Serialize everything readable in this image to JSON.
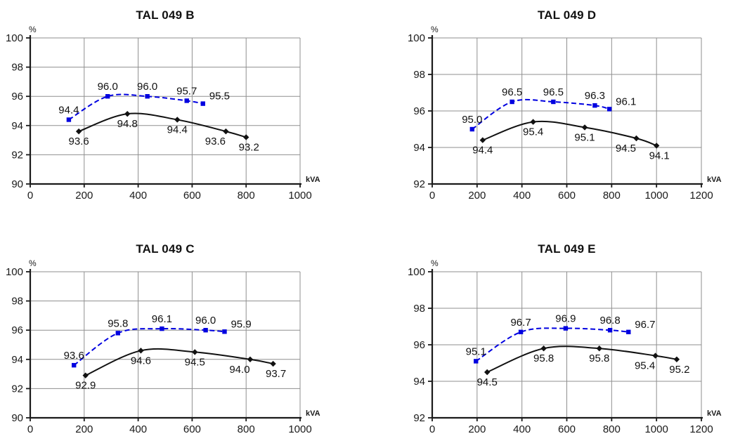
{
  "colors": {
    "series_blue": "#0000e0",
    "series_black": "#111111",
    "grid": "#8f8f8f",
    "axis": "#1a1a1a",
    "text": "#1a1a1a"
  },
  "chart_data": [
    {
      "type": "line",
      "title": "TAL 049 B",
      "xlabel": "kVA",
      "ylabel": "%",
      "xlim": [
        0,
        1000
      ],
      "ylim": [
        90,
        100
      ],
      "xticks": [
        0,
        200,
        400,
        600,
        800,
        1000
      ],
      "yticks": [
        90,
        92,
        94,
        96,
        98,
        100
      ],
      "grid": true,
      "legend": "none",
      "series": [
        {
          "name": "upper-curve-blue-dashed-squares",
          "marker": "square",
          "line": "dashed",
          "color": "#0000e0",
          "x": [
            143,
            287,
            434,
            580,
            640
          ],
          "y": [
            94.4,
            96.0,
            96.0,
            95.7,
            95.5
          ],
          "labels": [
            "94.4",
            "96.0",
            "96.0",
            "95.7",
            "95.5"
          ]
        },
        {
          "name": "lower-curve-black-solid-diamonds",
          "marker": "diamond",
          "line": "solid",
          "color": "#111111",
          "x": [
            180,
            360,
            545,
            725,
            800
          ],
          "y": [
            93.6,
            94.8,
            94.4,
            93.6,
            93.2
          ],
          "labels": [
            "93.6",
            "94.8",
            "94.4",
            "93.6",
            "93.2"
          ]
        }
      ]
    },
    {
      "type": "line",
      "title": "TAL 049 D",
      "xlabel": "kVA",
      "ylabel": "%",
      "xlim": [
        0,
        1200
      ],
      "ylim": [
        92,
        100
      ],
      "xticks": [
        0,
        200,
        400,
        600,
        800,
        1000,
        1200
      ],
      "yticks": [
        92,
        94,
        96,
        98,
        100
      ],
      "grid": true,
      "legend": "none",
      "series": [
        {
          "name": "upper-curve-blue-dashed-squares",
          "marker": "square",
          "line": "dashed",
          "color": "#0000e0",
          "x": [
            178,
            356,
            540,
            725,
            790
          ],
          "y": [
            95.0,
            96.5,
            96.5,
            96.3,
            96.1
          ],
          "labels": [
            "95.0",
            "96.5",
            "96.5",
            "96.3",
            "96.1"
          ]
        },
        {
          "name": "lower-curve-black-solid-diamonds",
          "marker": "diamond",
          "line": "solid",
          "color": "#111111",
          "x": [
            225,
            450,
            680,
            910,
            1000
          ],
          "y": [
            94.4,
            95.4,
            95.1,
            94.5,
            94.1
          ],
          "labels": [
            "94.4",
            "95.4",
            "95.1",
            "94.5",
            "94.1"
          ]
        }
      ]
    },
    {
      "type": "line",
      "title": "TAL 049 C",
      "xlabel": "kVA",
      "ylabel": "%",
      "xlim": [
        0,
        1000
      ],
      "ylim": [
        90,
        100
      ],
      "xticks": [
        0,
        200,
        400,
        600,
        800,
        1000
      ],
      "yticks": [
        90,
        92,
        94,
        96,
        98,
        100
      ],
      "grid": true,
      "legend": "none",
      "series": [
        {
          "name": "upper-curve-blue-dashed-squares",
          "marker": "square",
          "line": "dashed",
          "color": "#0000e0",
          "x": [
            162,
            325,
            488,
            650,
            720
          ],
          "y": [
            93.6,
            95.8,
            96.1,
            96.0,
            95.9
          ],
          "labels": [
            "93.6",
            "95.8",
            "96.1",
            "96.0",
            "95.9"
          ]
        },
        {
          "name": "lower-curve-black-solid-diamonds",
          "marker": "diamond",
          "line": "solid",
          "color": "#111111",
          "x": [
            205,
            410,
            610,
            815,
            900
          ],
          "y": [
            92.9,
            94.6,
            94.5,
            94.0,
            93.7
          ],
          "labels": [
            "92.9",
            "94.6",
            "94.5",
            "94.0",
            "93.7"
          ]
        }
      ]
    },
    {
      "type": "line",
      "title": "TAL 049 E",
      "xlabel": "kVA",
      "ylabel": "%",
      "xlim": [
        0,
        1200
      ],
      "ylim": [
        92,
        100
      ],
      "xticks": [
        0,
        200,
        400,
        600,
        800,
        1000,
        1200
      ],
      "yticks": [
        92,
        94,
        96,
        98,
        100
      ],
      "grid": true,
      "legend": "none",
      "series": [
        {
          "name": "upper-curve-blue-dashed-squares",
          "marker": "square",
          "line": "dashed",
          "color": "#0000e0",
          "x": [
            195,
            395,
            595,
            793,
            875
          ],
          "y": [
            95.1,
            96.7,
            96.9,
            96.8,
            96.7
          ],
          "labels": [
            "95.1",
            "96.7",
            "96.9",
            "96.8",
            "96.7"
          ]
        },
        {
          "name": "lower-curve-black-solid-diamonds",
          "marker": "diamond",
          "line": "solid",
          "color": "#111111",
          "x": [
            245,
            497,
            745,
            995,
            1090
          ],
          "y": [
            94.5,
            95.8,
            95.8,
            95.4,
            95.2
          ],
          "labels": [
            "94.5",
            "95.8",
            "95.8",
            "95.4",
            "95.2"
          ]
        }
      ]
    }
  ]
}
